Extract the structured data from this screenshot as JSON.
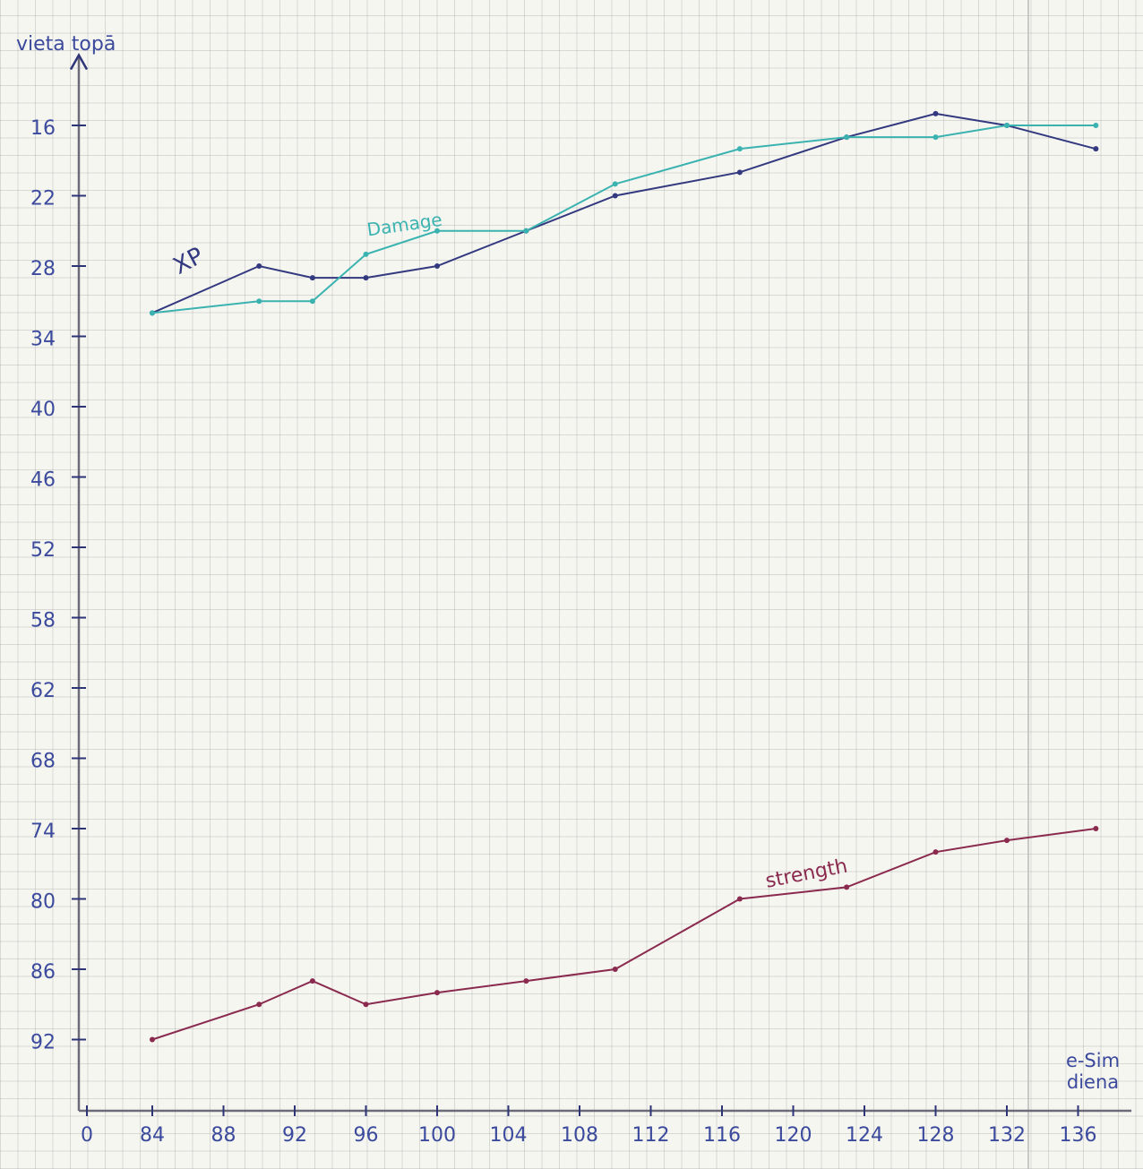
{
  "chart_data": {
    "type": "line",
    "y_label": "vieta topā",
    "x_label": "e-Sim diena",
    "x": [
      84,
      90,
      93,
      96,
      100,
      105,
      110,
      117,
      123,
      128,
      132,
      137
    ],
    "series": [
      {
        "name": "XP",
        "color": "#33397f",
        "values": [
          32,
          28,
          29,
          29,
          28,
          25,
          22,
          20,
          17,
          15,
          16,
          18
        ]
      },
      {
        "name": "Damage",
        "color": "#3ab3b0",
        "values": [
          32,
          31,
          31,
          27,
          25,
          25,
          21,
          18,
          17,
          17,
          16,
          16
        ]
      },
      {
        "name": "strength",
        "color": "#8a2a4e",
        "values": [
          92,
          89,
          87,
          89,
          88,
          87,
          86,
          80,
          79,
          76,
          75,
          74
        ]
      }
    ],
    "xlim": [
      0,
      139
    ],
    "xticks": [
      0,
      84,
      88,
      92,
      96,
      100,
      104,
      108,
      112,
      116,
      120,
      124,
      128,
      132,
      136
    ],
    "ylim": [
      10,
      98
    ],
    "yticks": [
      16,
      22,
      28,
      34,
      40,
      46,
      52,
      58,
      62,
      68,
      74,
      80,
      86,
      92
    ],
    "y_inverted": true
  }
}
